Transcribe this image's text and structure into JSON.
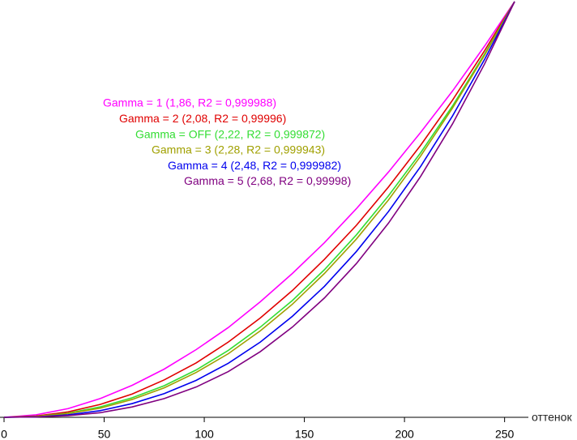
{
  "chart_data": {
    "type": "line",
    "x_label": "оттенок",
    "x": [
      0,
      16,
      32,
      48,
      64,
      80,
      96,
      112,
      128,
      144,
      160,
      176,
      192,
      208,
      224,
      240,
      255
    ],
    "xlim": [
      0,
      255
    ],
    "xticks": [
      0,
      50,
      100,
      150,
      200,
      250
    ],
    "ylim": [
      0,
      1
    ],
    "series": [
      {
        "name": "Gamma = 1 (1,86, R2 = 0,999988)",
        "color": "#ff00ff",
        "values": [
          0,
          0.006,
          0.021,
          0.045,
          0.077,
          0.116,
          0.163,
          0.216,
          0.278,
          0.346,
          0.42,
          0.502,
          0.59,
          0.685,
          0.785,
          0.893,
          1
        ]
      },
      {
        "name": "Gamma = 2 (2,08, R2 = 0,99996)",
        "color": "#e00000",
        "values": [
          0,
          0.003,
          0.013,
          0.031,
          0.056,
          0.09,
          0.131,
          0.181,
          0.239,
          0.305,
          0.38,
          0.462,
          0.554,
          0.654,
          0.763,
          0.882,
          1
        ]
      },
      {
        "name": "Gamma = OFF (2,22, R2 = 0,999872)",
        "color": "#33dd33",
        "values": [
          0,
          0.002,
          0.01,
          0.025,
          0.047,
          0.076,
          0.114,
          0.161,
          0.217,
          0.281,
          0.355,
          0.439,
          0.533,
          0.636,
          0.749,
          0.874,
          1
        ]
      },
      {
        "name": "Gamma = 3 (2,28, R2 = 0,999943)",
        "color": "#a0a000",
        "values": [
          0,
          0.002,
          0.009,
          0.022,
          0.043,
          0.071,
          0.108,
          0.153,
          0.208,
          0.272,
          0.346,
          0.429,
          0.523,
          0.628,
          0.744,
          0.871,
          1
        ]
      },
      {
        "name": "Gamma = 4 (2,48, R2 = 0,999982)",
        "color": "#0000ee",
        "values": [
          0,
          0.001,
          0.006,
          0.016,
          0.033,
          0.057,
          0.089,
          0.13,
          0.181,
          0.243,
          0.315,
          0.399,
          0.495,
          0.603,
          0.725,
          0.861,
          1
        ]
      },
      {
        "name": "Gamma = 5 (2,68, R2 = 0,99998)",
        "color": "#800080",
        "values": [
          0,
          0.001,
          0.004,
          0.011,
          0.025,
          0.045,
          0.073,
          0.11,
          0.158,
          0.217,
          0.287,
          0.37,
          0.467,
          0.579,
          0.706,
          0.85,
          1
        ]
      }
    ]
  }
}
